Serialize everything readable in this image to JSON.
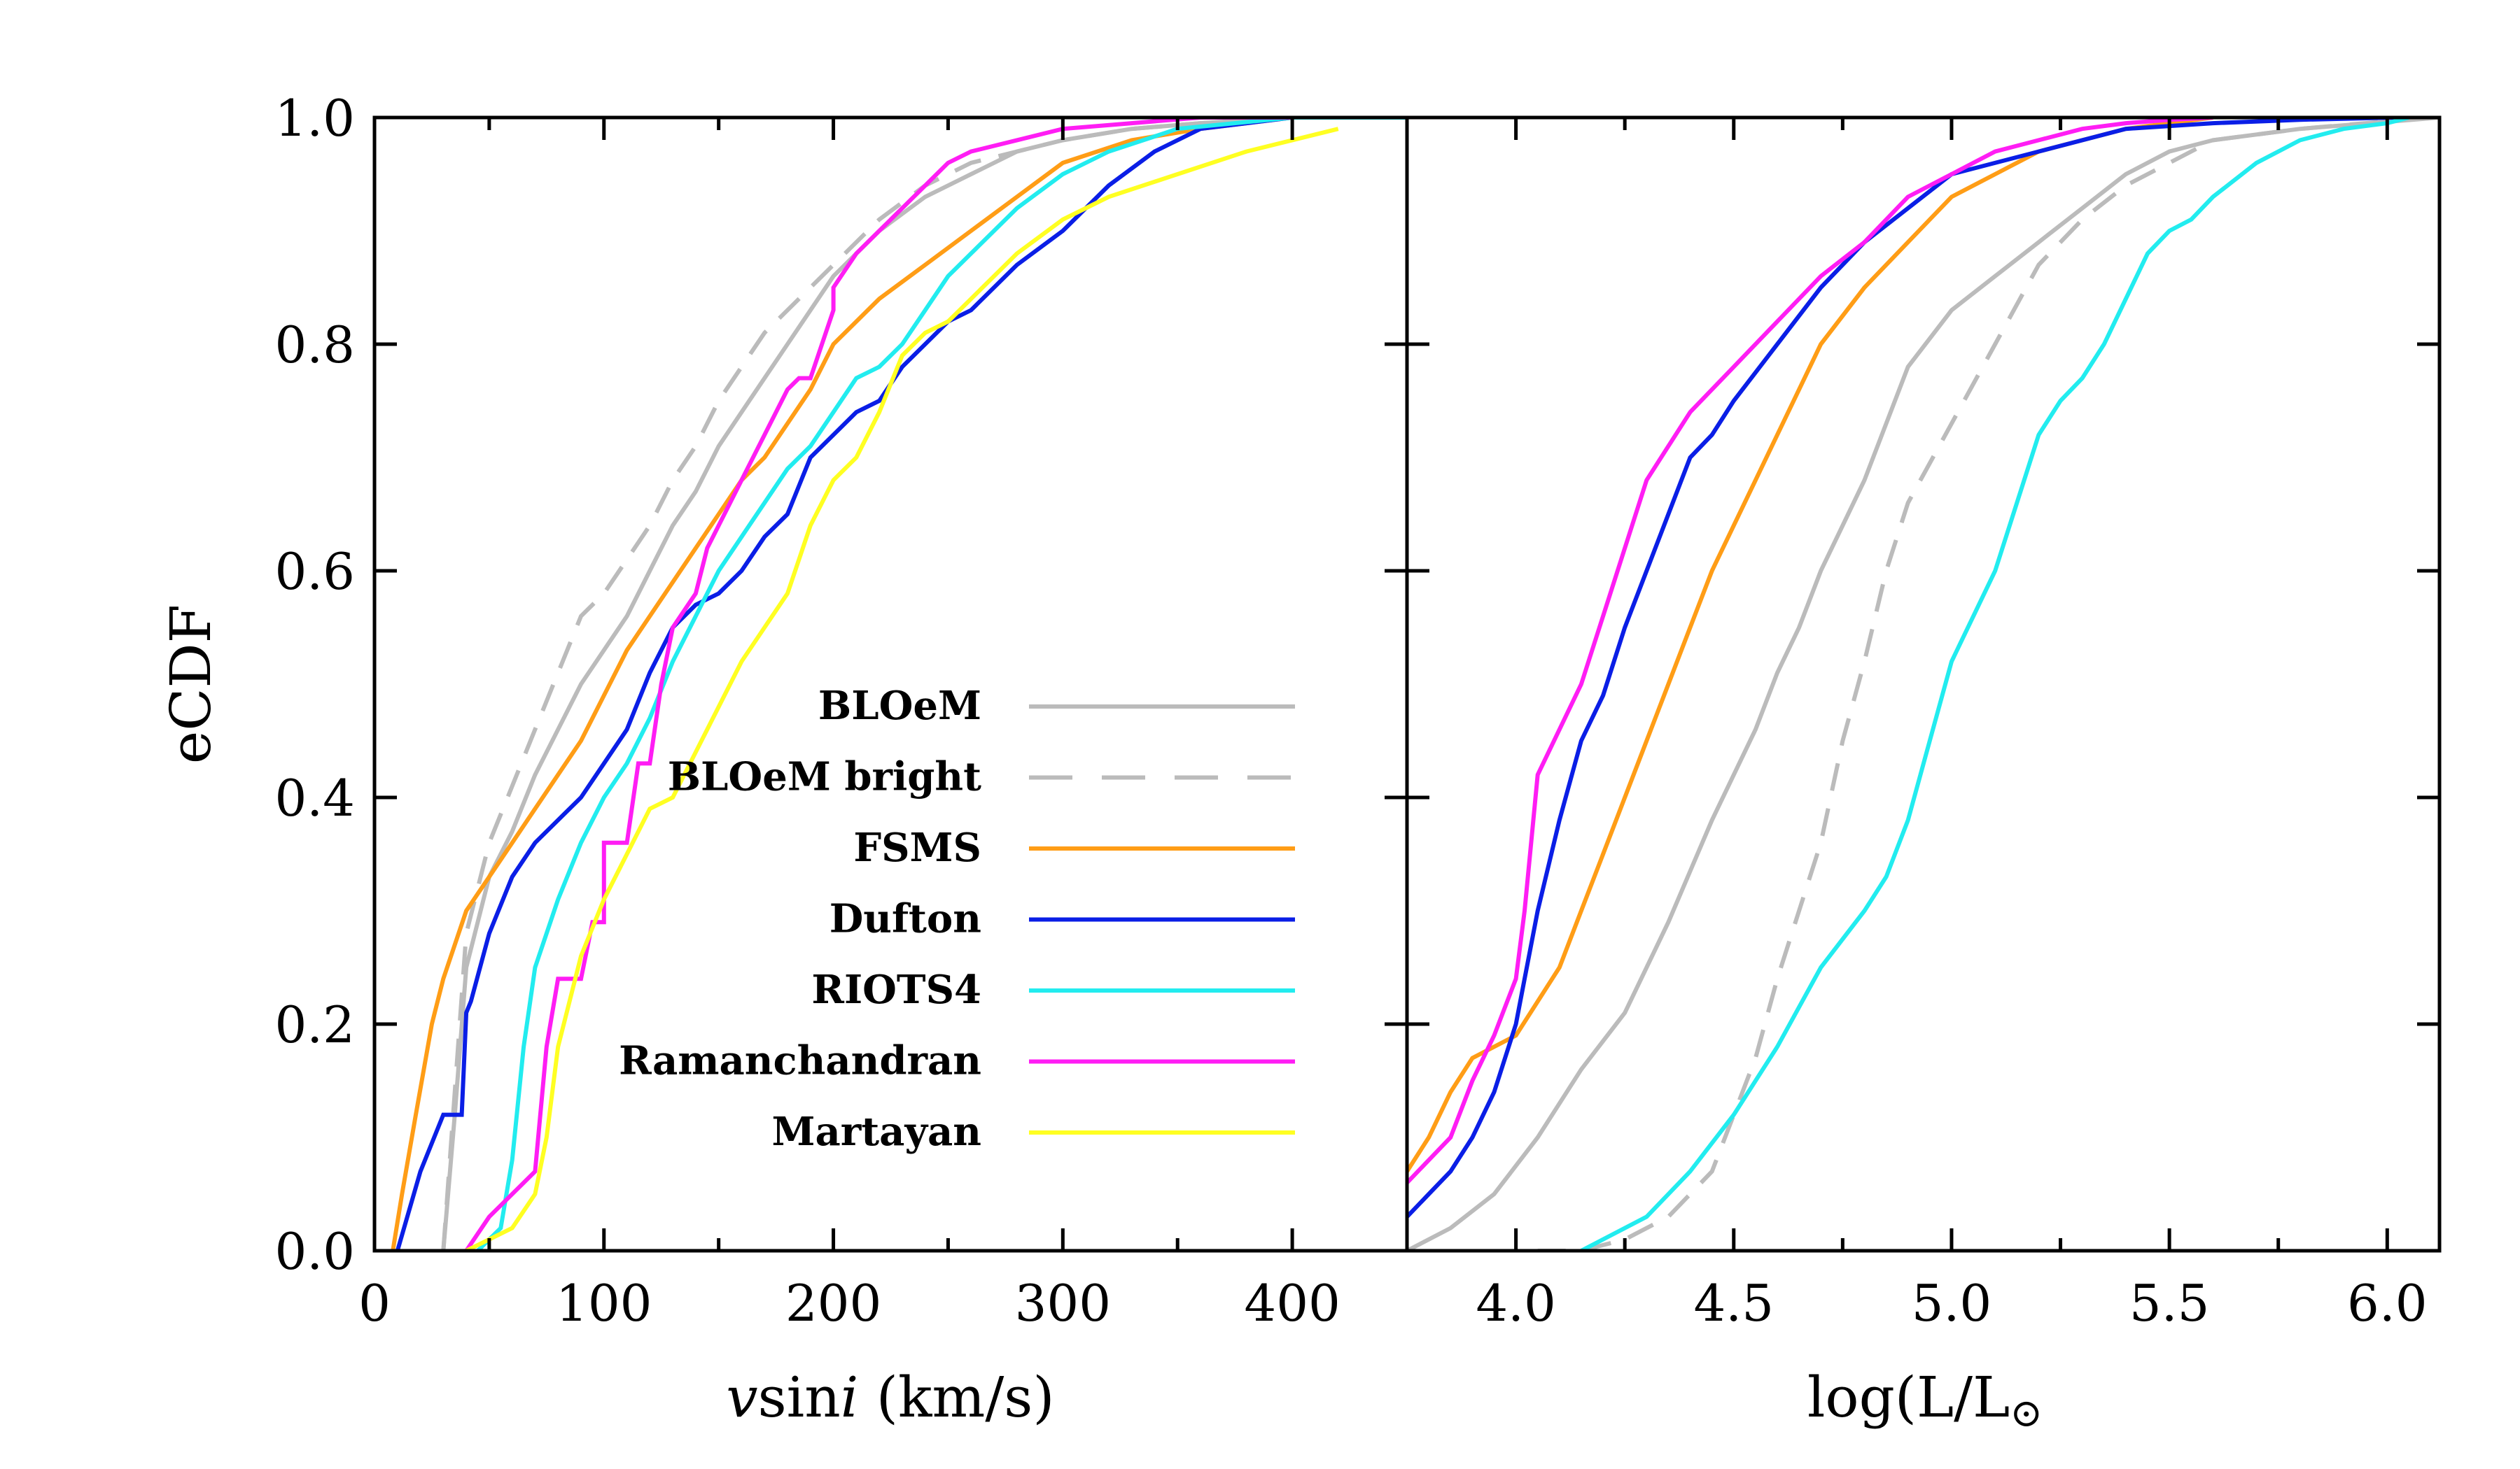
{
  "figure": {
    "ylabel": "eCDF"
  },
  "chart_data": [
    {
      "type": "line",
      "panel": "left",
      "xlabel": "vsini (km/s)",
      "xlabel_parts": {
        "v": "v",
        "sin": "sin",
        "i": "i",
        "units": " (km/s)"
      },
      "ylabel": "eCDF",
      "xlim": [
        0,
        450
      ],
      "ylim": [
        0,
        1.0
      ],
      "xticks": [
        0,
        100,
        200,
        300,
        400
      ],
      "yticks": [
        0.0,
        0.2,
        0.4,
        0.6,
        0.8,
        1.0
      ],
      "ytick_labels": [
        "0.0",
        "0.2",
        "0.4",
        "0.6",
        "0.8",
        "1.0"
      ],
      "legend": "inside lower-right",
      "series": [
        {
          "name": "BLOeM",
          "color": "#bbbbbb",
          "dash": "solid",
          "x": [
            30,
            35,
            40,
            50,
            60,
            70,
            80,
            90,
            100,
            110,
            120,
            130,
            140,
            150,
            160,
            170,
            180,
            190,
            200,
            220,
            240,
            260,
            280,
            300,
            330,
            360,
            400,
            450
          ],
          "y": [
            0.0,
            0.12,
            0.25,
            0.33,
            0.37,
            0.42,
            0.46,
            0.5,
            0.53,
            0.56,
            0.6,
            0.64,
            0.67,
            0.71,
            0.74,
            0.77,
            0.8,
            0.83,
            0.86,
            0.9,
            0.93,
            0.95,
            0.97,
            0.98,
            0.99,
            0.995,
            1.0,
            1.0
          ]
        },
        {
          "name": "BLOeM bright",
          "color": "#bbbbbb",
          "dash": "dashed",
          "x": [
            30,
            35,
            40,
            50,
            60,
            70,
            80,
            90,
            100,
            110,
            120,
            130,
            140,
            150,
            160,
            170,
            180,
            190,
            200,
            220,
            240,
            260,
            280,
            300,
            330,
            360,
            400,
            450
          ],
          "y": [
            0.0,
            0.14,
            0.28,
            0.36,
            0.41,
            0.46,
            0.51,
            0.56,
            0.58,
            0.61,
            0.64,
            0.68,
            0.71,
            0.75,
            0.78,
            0.81,
            0.83,
            0.85,
            0.87,
            0.91,
            0.94,
            0.96,
            0.97,
            0.98,
            0.99,
            0.995,
            1.0,
            1.0
          ]
        },
        {
          "name": "FSMS",
          "color": "#ff9d16",
          "dash": "solid",
          "x": [
            8,
            12,
            18,
            25,
            30,
            40,
            50,
            60,
            70,
            80,
            90,
            100,
            110,
            120,
            130,
            140,
            150,
            160,
            170,
            180,
            190,
            200,
            220,
            240,
            260,
            280,
            300,
            330,
            360,
            400,
            450
          ],
          "y": [
            0.0,
            0.05,
            0.12,
            0.2,
            0.24,
            0.3,
            0.33,
            0.36,
            0.39,
            0.42,
            0.45,
            0.49,
            0.53,
            0.56,
            0.59,
            0.62,
            0.65,
            0.68,
            0.7,
            0.73,
            0.76,
            0.8,
            0.84,
            0.87,
            0.9,
            0.93,
            0.96,
            0.98,
            0.99,
            1.0,
            1.0
          ]
        },
        {
          "name": "Dufton",
          "color": "#0a1ee6",
          "dash": "solid",
          "x": [
            10,
            20,
            30,
            38,
            40,
            42,
            50,
            60,
            70,
            80,
            90,
            100,
            110,
            120,
            130,
            140,
            150,
            160,
            170,
            180,
            190,
            200,
            210,
            220,
            230,
            240,
            250,
            260,
            280,
            300,
            320,
            340,
            360,
            400,
            450
          ],
          "y": [
            0.0,
            0.07,
            0.12,
            0.12,
            0.21,
            0.22,
            0.28,
            0.33,
            0.36,
            0.38,
            0.4,
            0.43,
            0.46,
            0.51,
            0.55,
            0.57,
            0.58,
            0.6,
            0.63,
            0.65,
            0.7,
            0.72,
            0.74,
            0.75,
            0.78,
            0.8,
            0.82,
            0.83,
            0.87,
            0.9,
            0.94,
            0.97,
            0.99,
            1.0,
            1.0
          ]
        },
        {
          "name": "RIOTS4",
          "color": "#22ecef",
          "dash": "solid",
          "x": [
            45,
            55,
            60,
            65,
            70,
            80,
            90,
            100,
            110,
            120,
            130,
            140,
            150,
            160,
            170,
            180,
            190,
            200,
            210,
            220,
            230,
            240,
            250,
            260,
            280,
            300,
            320,
            350,
            400,
            450
          ],
          "y": [
            0.0,
            0.02,
            0.08,
            0.18,
            0.25,
            0.31,
            0.36,
            0.4,
            0.43,
            0.47,
            0.52,
            0.56,
            0.6,
            0.63,
            0.66,
            0.69,
            0.71,
            0.74,
            0.77,
            0.78,
            0.8,
            0.83,
            0.86,
            0.88,
            0.92,
            0.95,
            0.97,
            0.99,
            1.0,
            1.0
          ]
        },
        {
          "name": "Ramanchandran",
          "color": "#ff1df4",
          "dash": "solid",
          "x": [
            40,
            50,
            60,
            70,
            75,
            80,
            90,
            95,
            100,
            100,
            110,
            115,
            120,
            125,
            130,
            140,
            145,
            150,
            160,
            170,
            180,
            185,
            190,
            200,
            200,
            210,
            220,
            230,
            240,
            250,
            260,
            280,
            300,
            330,
            360,
            400
          ],
          "y": [
            0.0,
            0.03,
            0.05,
            0.07,
            0.18,
            0.24,
            0.24,
            0.29,
            0.29,
            0.36,
            0.36,
            0.43,
            0.43,
            0.5,
            0.55,
            0.58,
            0.62,
            0.64,
            0.68,
            0.72,
            0.76,
            0.77,
            0.77,
            0.83,
            0.85,
            0.88,
            0.9,
            0.92,
            0.94,
            0.96,
            0.97,
            0.98,
            0.99,
            0.995,
            1.0,
            1.0
          ]
        },
        {
          "name": "Martayan",
          "color": "#ffff22",
          "dash": "solid",
          "x": [
            40,
            60,
            70,
            75,
            80,
            90,
            100,
            110,
            120,
            130,
            140,
            150,
            160,
            170,
            180,
            190,
            200,
            210,
            220,
            230,
            240,
            250,
            260,
            280,
            300,
            320,
            350,
            380,
            410,
            420
          ],
          "y": [
            0.0,
            0.02,
            0.05,
            0.1,
            0.18,
            0.26,
            0.31,
            0.35,
            0.39,
            0.4,
            0.44,
            0.48,
            0.52,
            0.55,
            0.58,
            0.64,
            0.68,
            0.7,
            0.74,
            0.79,
            0.81,
            0.82,
            0.84,
            0.88,
            0.91,
            0.93,
            0.95,
            0.97,
            0.985,
            0.99
          ]
        }
      ]
    },
    {
      "type": "line",
      "panel": "right",
      "xlabel": "log(L/L",
      "xlabel_sun": "⊙",
      "xlim": [
        3.75,
        6.12
      ],
      "ylim": [
        0,
        1.0
      ],
      "xticks": [
        4.0,
        4.5,
        5.0,
        5.5,
        6.0
      ],
      "xtick_labels": [
        "4.0",
        "4.5",
        "5.0",
        "5.5",
        "6.0"
      ],
      "series": [
        {
          "name": "BLOeM",
          "color": "#bbbbbb",
          "dash": "solid",
          "x": [
            3.75,
            3.85,
            3.95,
            4.05,
            4.15,
            4.25,
            4.35,
            4.45,
            4.55,
            4.6,
            4.65,
            4.7,
            4.75,
            4.8,
            4.85,
            4.9,
            5.0,
            5.1,
            5.2,
            5.3,
            5.4,
            5.5,
            5.6,
            5.8,
            6.12
          ],
          "y": [
            0.0,
            0.02,
            0.05,
            0.1,
            0.16,
            0.21,
            0.29,
            0.38,
            0.46,
            0.51,
            0.55,
            0.6,
            0.64,
            0.68,
            0.73,
            0.78,
            0.83,
            0.86,
            0.89,
            0.92,
            0.95,
            0.97,
            0.98,
            0.99,
            1.0
          ]
        },
        {
          "name": "BLOeM bright",
          "color": "#bbbbbb",
          "dash": "dashed",
          "x": [
            4.05,
            4.15,
            4.25,
            4.35,
            4.45,
            4.5,
            4.55,
            4.6,
            4.65,
            4.7,
            4.75,
            4.8,
            4.85,
            4.9,
            5.0,
            5.1,
            5.2,
            5.3,
            5.4,
            5.5,
            5.6,
            5.8,
            6.1
          ],
          "y": [
            0.0,
            0.0,
            0.01,
            0.03,
            0.07,
            0.12,
            0.17,
            0.24,
            0.3,
            0.36,
            0.45,
            0.52,
            0.6,
            0.66,
            0.73,
            0.8,
            0.87,
            0.91,
            0.94,
            0.96,
            0.98,
            0.99,
            1.0
          ]
        },
        {
          "name": "FSMS",
          "color": "#ff9d16",
          "dash": "solid",
          "x": [
            3.75,
            3.8,
            3.85,
            3.9,
            4.0,
            4.05,
            4.1,
            4.15,
            4.2,
            4.25,
            4.3,
            4.35,
            4.4,
            4.45,
            4.5,
            4.55,
            4.6,
            4.65,
            4.7,
            4.8,
            4.9,
            5.0,
            5.1,
            5.2,
            5.3,
            5.4,
            5.5,
            5.6
          ],
          "y": [
            0.07,
            0.1,
            0.14,
            0.17,
            0.19,
            0.22,
            0.25,
            0.3,
            0.35,
            0.4,
            0.45,
            0.5,
            0.55,
            0.6,
            0.64,
            0.68,
            0.72,
            0.76,
            0.8,
            0.85,
            0.89,
            0.93,
            0.95,
            0.97,
            0.98,
            0.99,
            0.995,
            1.0
          ]
        },
        {
          "name": "Dufton",
          "color": "#0a1ee6",
          "dash": "solid",
          "x": [
            3.75,
            3.8,
            3.85,
            3.9,
            3.95,
            4.0,
            4.02,
            4.05,
            4.1,
            4.15,
            4.2,
            4.25,
            4.3,
            4.35,
            4.4,
            4.45,
            4.5,
            4.6,
            4.7,
            4.8,
            4.9,
            5.0,
            5.2,
            5.4,
            5.6,
            5.8,
            6.02
          ],
          "y": [
            0.03,
            0.05,
            0.07,
            0.1,
            0.14,
            0.2,
            0.24,
            0.3,
            0.38,
            0.45,
            0.49,
            0.55,
            0.6,
            0.65,
            0.7,
            0.72,
            0.75,
            0.8,
            0.85,
            0.89,
            0.92,
            0.95,
            0.97,
            0.99,
            0.995,
            0.998,
            1.0
          ]
        },
        {
          "name": "RIOTS4",
          "color": "#22ecef",
          "dash": "solid",
          "x": [
            4.15,
            4.3,
            4.4,
            4.5,
            4.6,
            4.7,
            4.8,
            4.85,
            4.9,
            4.95,
            5.0,
            5.05,
            5.1,
            5.15,
            5.2,
            5.25,
            5.3,
            5.35,
            5.4,
            5.45,
            5.5,
            5.55,
            5.6,
            5.7,
            5.8,
            5.9,
            6.0,
            6.05
          ],
          "y": [
            0.0,
            0.03,
            0.07,
            0.12,
            0.18,
            0.25,
            0.3,
            0.33,
            0.38,
            0.45,
            0.52,
            0.56,
            0.6,
            0.66,
            0.72,
            0.75,
            0.77,
            0.8,
            0.84,
            0.88,
            0.9,
            0.91,
            0.93,
            0.96,
            0.98,
            0.99,
            0.995,
            1.0
          ]
        },
        {
          "name": "Ramanchandran",
          "color": "#ff1df4",
          "dash": "solid",
          "x": [
            3.75,
            3.85,
            3.9,
            3.95,
            4.0,
            4.02,
            4.05,
            4.1,
            4.15,
            4.2,
            4.25,
            4.3,
            4.35,
            4.4,
            4.5,
            4.6,
            4.7,
            4.8,
            4.9,
            5.0,
            5.1,
            5.2,
            5.3,
            5.4,
            5.5,
            5.6
          ],
          "y": [
            0.06,
            0.1,
            0.15,
            0.19,
            0.24,
            0.3,
            0.42,
            0.46,
            0.5,
            0.56,
            0.62,
            0.68,
            0.71,
            0.74,
            0.78,
            0.82,
            0.86,
            0.89,
            0.93,
            0.95,
            0.97,
            0.98,
            0.99,
            0.995,
            0.998,
            1.0
          ]
        }
      ]
    }
  ]
}
